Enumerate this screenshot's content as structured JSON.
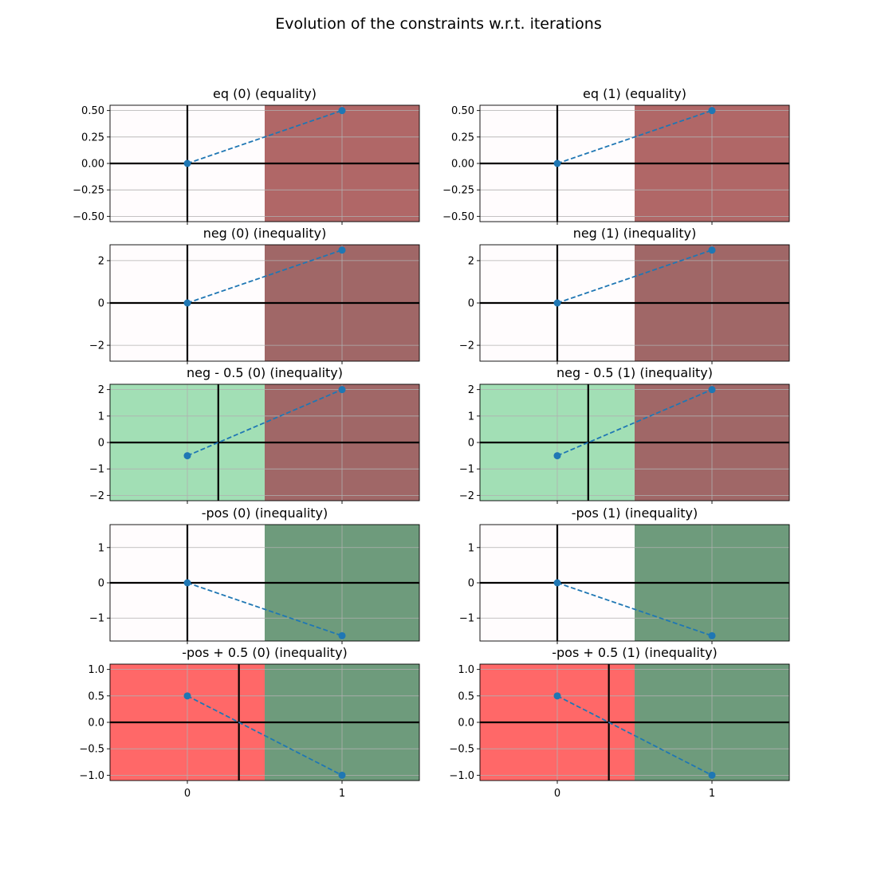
{
  "figure": {
    "title": "Evolution of the constraints w.r.t. iterations"
  },
  "colors": {
    "neutral_bg": "#fffcfd",
    "bad_red": "#b06767",
    "bad_red_ineq": "#a06767",
    "good_green": "#6e9b7c",
    "light_green": "#a2dfb5",
    "bright_red": "#ff6868",
    "series": "#1f77b4",
    "axis_line": "#000000",
    "grid": "#b0b0b0"
  },
  "chart_data": [
    {
      "type": "line",
      "title": "eq (0) (equality)",
      "x": [
        0,
        1
      ],
      "y": [
        0,
        0.5
      ],
      "xlim": [
        -0.5,
        1.5
      ],
      "ylim": [
        -0.55,
        0.55
      ],
      "yticks": [
        -0.5,
        -0.25,
        0.0,
        0.25,
        0.5
      ],
      "ytick_labels": [
        "−0.50",
        "−0.25",
        "0.00",
        "0.25",
        "0.50"
      ],
      "xticks": [
        0,
        1
      ],
      "xtick_labels": [
        "",
        ""
      ],
      "regions": [
        {
          "from": -0.5,
          "to": 0.5,
          "color": "neutral_bg"
        },
        {
          "from": 0.5,
          "to": 1.5,
          "color": "bad_red"
        }
      ],
      "vline_x": 0
    },
    {
      "type": "line",
      "title": "eq (1) (equality)",
      "x": [
        0,
        1
      ],
      "y": [
        0,
        0.5
      ],
      "xlim": [
        -0.5,
        1.5
      ],
      "ylim": [
        -0.55,
        0.55
      ],
      "yticks": [
        -0.5,
        -0.25,
        0.0,
        0.25,
        0.5
      ],
      "ytick_labels": [
        "−0.50",
        "−0.25",
        "0.00",
        "0.25",
        "0.50"
      ],
      "xticks": [
        0,
        1
      ],
      "xtick_labels": [
        "",
        ""
      ],
      "regions": [
        {
          "from": -0.5,
          "to": 0.5,
          "color": "neutral_bg"
        },
        {
          "from": 0.5,
          "to": 1.5,
          "color": "bad_red"
        }
      ],
      "vline_x": 0
    },
    {
      "type": "line",
      "title": "neg (0) (inequality)",
      "x": [
        0,
        1
      ],
      "y": [
        0,
        2.5
      ],
      "xlim": [
        -0.5,
        1.5
      ],
      "ylim": [
        -2.75,
        2.75
      ],
      "yticks": [
        -2,
        0,
        2
      ],
      "ytick_labels": [
        "−2",
        "0",
        "2"
      ],
      "xticks": [
        0,
        1
      ],
      "xtick_labels": [
        "",
        ""
      ],
      "regions": [
        {
          "from": -0.5,
          "to": 0.5,
          "color": "neutral_bg"
        },
        {
          "from": 0.5,
          "to": 1.5,
          "color": "bad_red_ineq"
        }
      ],
      "vline_x": 0
    },
    {
      "type": "line",
      "title": "neg (1) (inequality)",
      "x": [
        0,
        1
      ],
      "y": [
        0,
        2.5
      ],
      "xlim": [
        -0.5,
        1.5
      ],
      "ylim": [
        -2.75,
        2.75
      ],
      "yticks": [
        -2,
        0,
        2
      ],
      "ytick_labels": [
        "−2",
        "0",
        "2"
      ],
      "xticks": [
        0,
        1
      ],
      "xtick_labels": [
        "",
        ""
      ],
      "regions": [
        {
          "from": -0.5,
          "to": 0.5,
          "color": "neutral_bg"
        },
        {
          "from": 0.5,
          "to": 1.5,
          "color": "bad_red_ineq"
        }
      ],
      "vline_x": 0
    },
    {
      "type": "line",
      "title": "neg - 0.5 (0) (inequality)",
      "x": [
        0,
        1
      ],
      "y": [
        -0.5,
        2.0
      ],
      "xlim": [
        -0.5,
        1.5
      ],
      "ylim": [
        -2.2,
        2.2
      ],
      "yticks": [
        -2,
        -1,
        0,
        1,
        2
      ],
      "ytick_labels": [
        "−2",
        "−1",
        "0",
        "1",
        "2"
      ],
      "xticks": [
        0,
        1
      ],
      "xtick_labels": [
        "",
        ""
      ],
      "regions": [
        {
          "from": -0.5,
          "to": 0.5,
          "color": "light_green"
        },
        {
          "from": 0.5,
          "to": 1.5,
          "color": "bad_red_ineq"
        }
      ],
      "vline_x": 0.2
    },
    {
      "type": "line",
      "title": "neg - 0.5 (1) (inequality)",
      "x": [
        0,
        1
      ],
      "y": [
        -0.5,
        2.0
      ],
      "xlim": [
        -0.5,
        1.5
      ],
      "ylim": [
        -2.2,
        2.2
      ],
      "yticks": [
        -2,
        -1,
        0,
        1,
        2
      ],
      "ytick_labels": [
        "−2",
        "−1",
        "0",
        "1",
        "2"
      ],
      "xticks": [
        0,
        1
      ],
      "xtick_labels": [
        "",
        ""
      ],
      "regions": [
        {
          "from": -0.5,
          "to": 0.5,
          "color": "light_green"
        },
        {
          "from": 0.5,
          "to": 1.5,
          "color": "bad_red_ineq"
        }
      ],
      "vline_x": 0.2
    },
    {
      "type": "line",
      "title": "-pos (0) (inequality)",
      "x": [
        0,
        1
      ],
      "y": [
        0,
        -1.5
      ],
      "xlim": [
        -0.5,
        1.5
      ],
      "ylim": [
        -1.65,
        1.65
      ],
      "yticks": [
        -1,
        0,
        1
      ],
      "ytick_labels": [
        "−1",
        "0",
        "1"
      ],
      "xticks": [
        0,
        1
      ],
      "xtick_labels": [
        "",
        ""
      ],
      "regions": [
        {
          "from": -0.5,
          "to": 0.5,
          "color": "neutral_bg"
        },
        {
          "from": 0.5,
          "to": 1.5,
          "color": "good_green"
        }
      ],
      "vline_x": 0
    },
    {
      "type": "line",
      "title": "-pos (1) (inequality)",
      "x": [
        0,
        1
      ],
      "y": [
        0,
        -1.5
      ],
      "xlim": [
        -0.5,
        1.5
      ],
      "ylim": [
        -1.65,
        1.65
      ],
      "yticks": [
        -1,
        0,
        1
      ],
      "ytick_labels": [
        "−1",
        "0",
        "1"
      ],
      "xticks": [
        0,
        1
      ],
      "xtick_labels": [
        "",
        ""
      ],
      "regions": [
        {
          "from": -0.5,
          "to": 0.5,
          "color": "neutral_bg"
        },
        {
          "from": 0.5,
          "to": 1.5,
          "color": "good_green"
        }
      ],
      "vline_x": 0
    },
    {
      "type": "line",
      "title": "-pos + 0.5 (0) (inequality)",
      "x": [
        0,
        1
      ],
      "y": [
        0.5,
        -1.0
      ],
      "xlim": [
        -0.5,
        1.5
      ],
      "ylim": [
        -1.1,
        1.1
      ],
      "yticks": [
        -1.0,
        -0.5,
        0.0,
        0.5,
        1.0
      ],
      "ytick_labels": [
        "−1.0",
        "−0.5",
        "0.0",
        "0.5",
        "1.0"
      ],
      "xticks": [
        0,
        1
      ],
      "xtick_labels": [
        "0",
        "1"
      ],
      "regions": [
        {
          "from": -0.5,
          "to": 0.5,
          "color": "bright_red"
        },
        {
          "from": 0.5,
          "to": 1.5,
          "color": "good_green"
        }
      ],
      "vline_x": 0.3333
    },
    {
      "type": "line",
      "title": "-pos + 0.5 (1) (inequality)",
      "x": [
        0,
        1
      ],
      "y": [
        0.5,
        -1.0
      ],
      "xlim": [
        -0.5,
        1.5
      ],
      "ylim": [
        -1.1,
        1.1
      ],
      "yticks": [
        -1.0,
        -0.5,
        0.0,
        0.5,
        1.0
      ],
      "ytick_labels": [
        "−1.0",
        "−0.5",
        "0.0",
        "0.5",
        "1.0"
      ],
      "xticks": [
        0,
        1
      ],
      "xtick_labels": [
        "0",
        "1"
      ],
      "regions": [
        {
          "from": -0.5,
          "to": 0.5,
          "color": "bright_red"
        },
        {
          "from": 0.5,
          "to": 1.5,
          "color": "good_green"
        }
      ],
      "vline_x": 0.3333
    }
  ]
}
